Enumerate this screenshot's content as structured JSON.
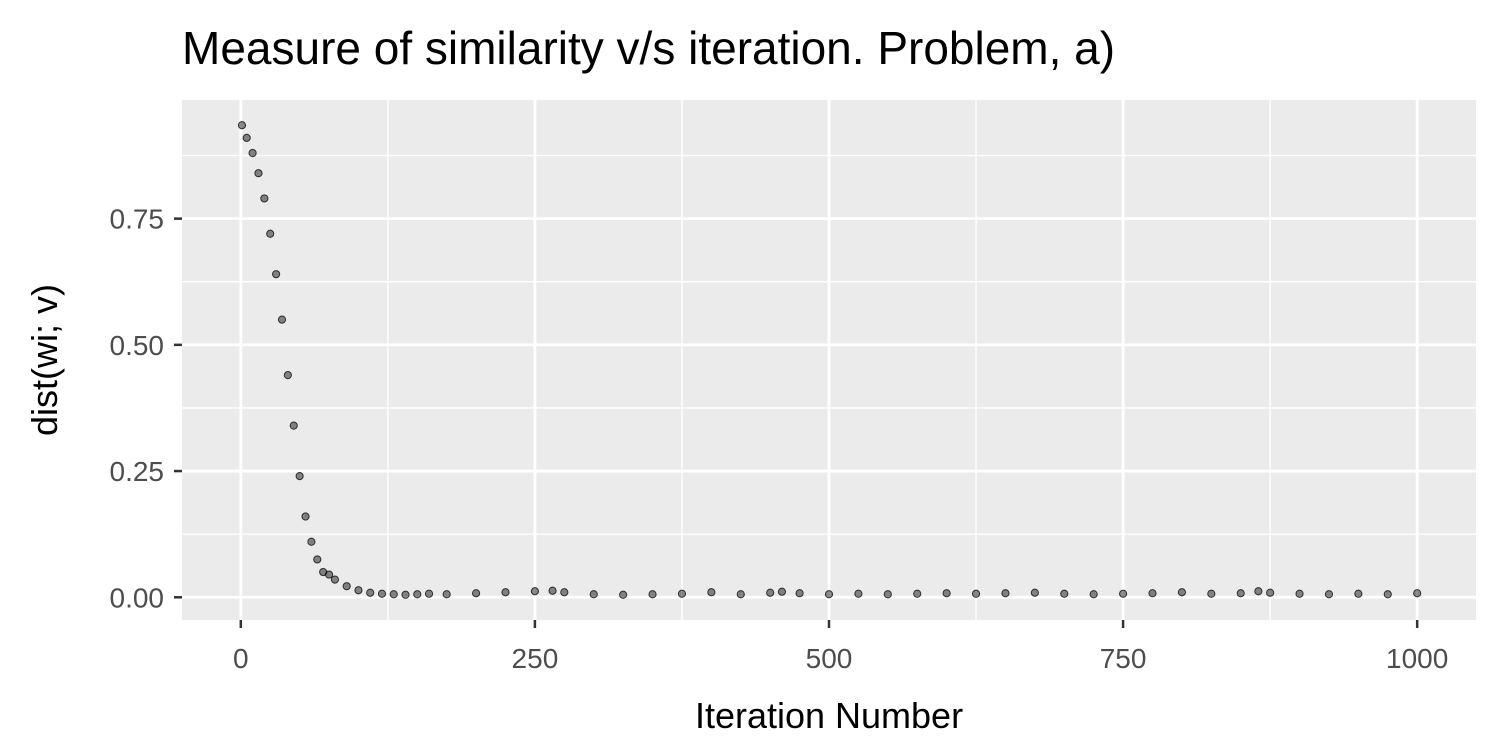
{
  "chart_data": {
    "type": "scatter",
    "title": "Measure of similarity v/s iteration. Problem, a)",
    "xlabel": "Iteration Number",
    "ylabel": "dist(wi; v)",
    "xlim": [
      -50,
      1050
    ],
    "ylim": [
      -0.045,
      0.985
    ],
    "x_ticks": [
      0,
      250,
      500,
      750,
      1000
    ],
    "x_tick_labels": [
      "0",
      "250",
      "500",
      "750",
      "1000"
    ],
    "y_ticks": [
      0,
      0.25,
      0.5,
      0.75
    ],
    "y_tick_labels": [
      "0.00",
      "0.25",
      "0.50",
      "0.75"
    ],
    "grid": true,
    "legend": "none",
    "colors": {
      "panel": "#ebebeb",
      "grid": "#ffffff",
      "point": "#000000",
      "tick_text": "#4d4d4d"
    },
    "series": [
      {
        "x": [
          1,
          5,
          10,
          15,
          20,
          25,
          30,
          35,
          40,
          45,
          50,
          55,
          60,
          65,
          70,
          75,
          80,
          90,
          100,
          110,
          120,
          130,
          140,
          150,
          160,
          175,
          200,
          225,
          250,
          265,
          275,
          300,
          325,
          350,
          375,
          400,
          425,
          450,
          460,
          475,
          500,
          525,
          550,
          575,
          600,
          625,
          650,
          675,
          700,
          725,
          750,
          775,
          800,
          825,
          850,
          865,
          875,
          900,
          925,
          950,
          975,
          1000
        ],
        "y": [
          0.935,
          0.91,
          0.88,
          0.84,
          0.79,
          0.72,
          0.64,
          0.55,
          0.44,
          0.34,
          0.24,
          0.16,
          0.11,
          0.075,
          0.05,
          0.045,
          0.035,
          0.022,
          0.014,
          0.009,
          0.007,
          0.006,
          0.005,
          0.006,
          0.007,
          0.006,
          0.008,
          0.01,
          0.012,
          0.013,
          0.01,
          0.006,
          0.005,
          0.006,
          0.007,
          0.01,
          0.006,
          0.009,
          0.011,
          0.008,
          0.006,
          0.007,
          0.006,
          0.007,
          0.008,
          0.007,
          0.008,
          0.009,
          0.007,
          0.006,
          0.007,
          0.008,
          0.01,
          0.007,
          0.008,
          0.012,
          0.009,
          0.007,
          0.006,
          0.007,
          0.006,
          0.008
        ]
      }
    ]
  }
}
